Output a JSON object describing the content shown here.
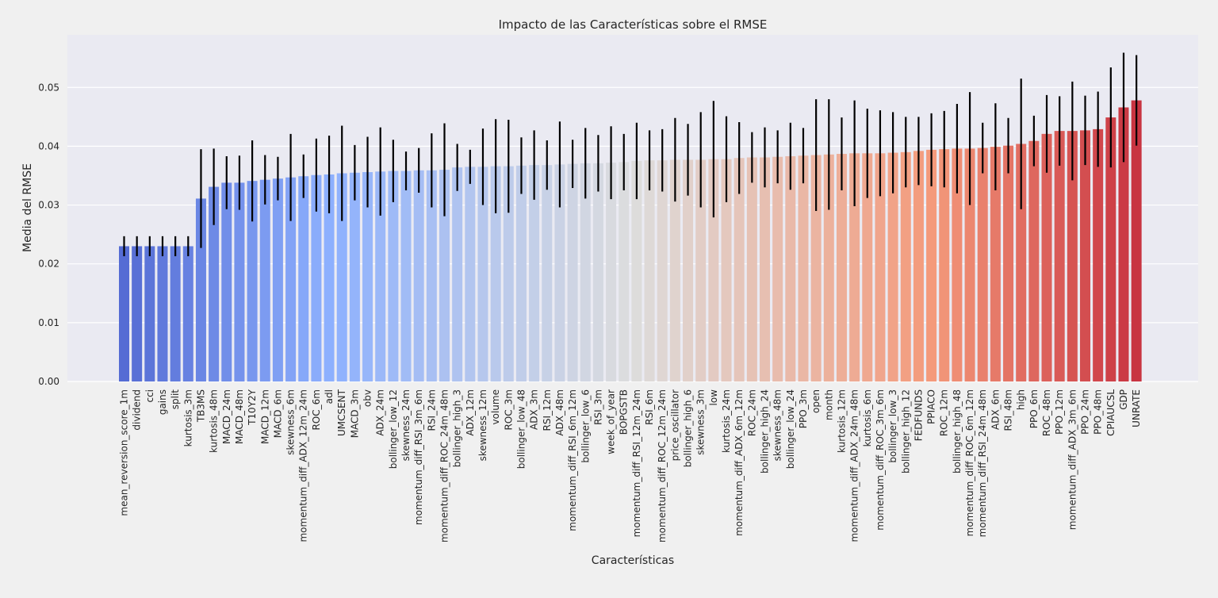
{
  "chart_data": {
    "type": "bar",
    "title": "Impacto de las Características sobre el RMSE",
    "xlabel": "Características",
    "ylabel": "Media del RMSE",
    "ylim": [
      0,
      0.056
    ],
    "yticks": [
      "0.00",
      "0.01",
      "0.02",
      "0.03",
      "0.04",
      "0.05"
    ],
    "grid": true,
    "error_bars": true,
    "colormap": "coolwarm",
    "categories": [
      "mean_reversion_score_1m",
      "dividend",
      "cci",
      "gains",
      "split",
      "kurtosis_3m",
      "TB3MS",
      "kurtosis_48m",
      "MACD_24m",
      "MACD_48m",
      "T10Y2Y",
      "MACD_12m",
      "MACD_6m",
      "skewness_6m",
      "momentum_diff_ADX_12m_24m",
      "ROC_6m",
      "adl",
      "UMCSENT",
      "MACD_3m",
      "obv",
      "ADX_24m",
      "bollinger_low_12",
      "skewness_24m",
      "momentum_diff_RSI_3m_6m",
      "RSI_24m",
      "momentum_diff_ROC_24m_48m",
      "bollinger_high_3",
      "ADX_12m",
      "skewness_12m",
      "volume",
      "ROC_3m",
      "bollinger_low_48",
      "ADX_3m",
      "RSI_12m",
      "ADX_48m",
      "momentum_diff_RSI_6m_12m",
      "bollinger_low_6",
      "RSI_3m",
      "week_of_year",
      "BOPGSTB",
      "momentum_diff_RSI_12m_24m",
      "RSI_6m",
      "momentum_diff_ROC_12m_24m",
      "price_oscillator",
      "bollinger_high_6",
      "skewness_3m",
      "low",
      "kurtosis_24m",
      "momentum_diff_ADX_6m_12m",
      "ROC_24m",
      "bollinger_high_24",
      "skewness_48m",
      "bollinger_low_24",
      "PPO_3m",
      "open",
      "month",
      "kurtosis_12m",
      "momentum_diff_ADX_24m_48m",
      "kurtosis_6m",
      "momentum_diff_ROC_3m_6m",
      "bollinger_low_3",
      "bollinger_high_12",
      "FEDFUNDS",
      "PPIACO",
      "ROC_12m",
      "bollinger_high_48",
      "momentum_diff_ROC_6m_12m",
      "momentum_diff_RSI_24m_48m",
      "ADX_6m",
      "RSI_48m",
      "high",
      "PPO_6m",
      "ROC_48m",
      "PPO_12m",
      "momentum_diff_ADX_3m_6m",
      "PPO_24m",
      "PPO_48m",
      "CPIAUCSL",
      "GDP",
      "UNRATE"
    ],
    "values": [
      0.023,
      0.023,
      0.023,
      0.023,
      0.023,
      0.023,
      0.0311,
      0.0331,
      0.0338,
      0.0338,
      0.0341,
      0.0343,
      0.0345,
      0.0347,
      0.0349,
      0.0351,
      0.0352,
      0.0354,
      0.0355,
      0.0356,
      0.0357,
      0.0358,
      0.0358,
      0.0359,
      0.0359,
      0.036,
      0.0364,
      0.0365,
      0.0365,
      0.0366,
      0.0366,
      0.0367,
      0.0368,
      0.0368,
      0.0369,
      0.037,
      0.0371,
      0.0371,
      0.0372,
      0.0373,
      0.0375,
      0.0376,
      0.0376,
      0.0377,
      0.0377,
      0.0377,
      0.0378,
      0.0378,
      0.038,
      0.0381,
      0.0381,
      0.0382,
      0.0383,
      0.0384,
      0.0385,
      0.0386,
      0.0387,
      0.0388,
      0.0388,
      0.0388,
      0.0389,
      0.039,
      0.0392,
      0.0394,
      0.0395,
      0.0396,
      0.0396,
      0.0397,
      0.0399,
      0.0401,
      0.0404,
      0.0409,
      0.0421,
      0.0426,
      0.0426,
      0.0427,
      0.0429,
      0.0449,
      0.0466,
      0.0478
    ],
    "errors": [
      0.0017,
      0.0017,
      0.0017,
      0.0017,
      0.0017,
      0.0017,
      0.0084,
      0.0065,
      0.0045,
      0.0046,
      0.0069,
      0.0042,
      0.0037,
      0.0074,
      0.0037,
      0.0062,
      0.0066,
      0.0081,
      0.0047,
      0.006,
      0.0075,
      0.0053,
      0.0033,
      0.0038,
      0.0063,
      0.0079,
      0.004,
      0.0029,
      0.0065,
      0.008,
      0.0079,
      0.0048,
      0.0059,
      0.0042,
      0.0073,
      0.0041,
      0.006,
      0.0048,
      0.0062,
      0.0048,
      0.0065,
      0.0051,
      0.0053,
      0.0071,
      0.0061,
      0.0081,
      0.0099,
      0.0073,
      0.0061,
      0.0043,
      0.0051,
      0.0045,
      0.0057,
      0.0047,
      0.0095,
      0.0094,
      0.0062,
      0.009,
      0.0076,
      0.0073,
      0.0069,
      0.006,
      0.0058,
      0.0062,
      0.0065,
      0.0076,
      0.0096,
      0.0043,
      0.0074,
      0.0047,
      0.0111,
      0.0043,
      0.0066,
      0.0059,
      0.0084,
      0.0059,
      0.0064,
      0.0085,
      0.0093,
      0.0077
    ],
    "colors": [
      "#5a6acd",
      "#5a6acd",
      "#5a6acd",
      "#5a6acd",
      "#5a6acd",
      "#5a6acd"
    ]
  }
}
